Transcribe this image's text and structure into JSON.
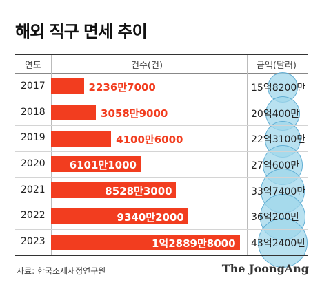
{
  "title": "해외 직구 면세 추이",
  "header": {
    "year_label": "연도",
    "count_label": "건수(건)",
    "amount_label": "금액(달러)"
  },
  "rows": [
    {
      "year": "2017",
      "count_label": "2236만7000",
      "amount_label": "15억8200만"
    },
    {
      "year": "2018",
      "count_label": "3058만9000",
      "amount_label": "20억400만"
    },
    {
      "year": "2019",
      "count_label": "4100만6000",
      "amount_label": "22억3100만"
    },
    {
      "year": "2020",
      "count_label": "6101만1000",
      "amount_label": "27억600만"
    },
    {
      "year": "2021",
      "count_label": "8528만3000",
      "amount_label": "33억7400만"
    },
    {
      "year": "2022",
      "count_label": "9340만2000",
      "amount_label": "36억200만"
    },
    {
      "year": "2023",
      "count_label": "1억2889만8000",
      "amount_label": "43억2400만"
    }
  ],
  "source": "자료: 한국조세재정연구원",
  "logo": "The JoongAng",
  "colors": {
    "bar": "#f23d1f",
    "bubble": "#a0d7eb",
    "text_on_bar": "#ffffff",
    "text_off_bar": "#f23d1f"
  },
  "chart_data": {
    "type": "bar",
    "title": "해외 직구 면세 추이",
    "categories": [
      "2017",
      "2018",
      "2019",
      "2020",
      "2021",
      "2022",
      "2023"
    ],
    "series": [
      {
        "name": "건수(건)",
        "values": [
          22367000,
          30589000,
          41006000,
          61011000,
          85283000,
          93402000,
          128898000
        ]
      },
      {
        "name": "금액(달러)",
        "values": [
          1582000000,
          2004000000,
          2231000000,
          2706000000,
          3374000000,
          3602000000,
          4324000000
        ]
      }
    ],
    "xlabel": "연도",
    "ylabel": "",
    "orientation": "horizontal"
  }
}
